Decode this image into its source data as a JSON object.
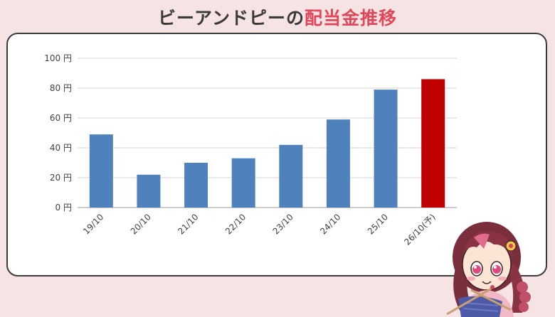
{
  "title": {
    "prefix": "ビーアンドピーの",
    "accent": "配当金推移"
  },
  "colors": {
    "bar": "#4f81bd",
    "highlight": "#c00000",
    "accent": "#e0485a"
  },
  "chart_data": {
    "type": "bar",
    "categories": [
      "19/10",
      "20/10",
      "21/10",
      "22/10",
      "23/10",
      "24/10",
      "25/10",
      "26/10(予)"
    ],
    "values": [
      49,
      22,
      30,
      33,
      42,
      59,
      79,
      86
    ],
    "highlight_index": 7,
    "yticks": [
      "0 円",
      "20 円",
      "40 円",
      "60 円",
      "80 円",
      "100 円"
    ],
    "ylim": [
      0,
      100
    ],
    "grid": true
  },
  "mascot": {
    "icon": "girl-knitting-illustration"
  }
}
